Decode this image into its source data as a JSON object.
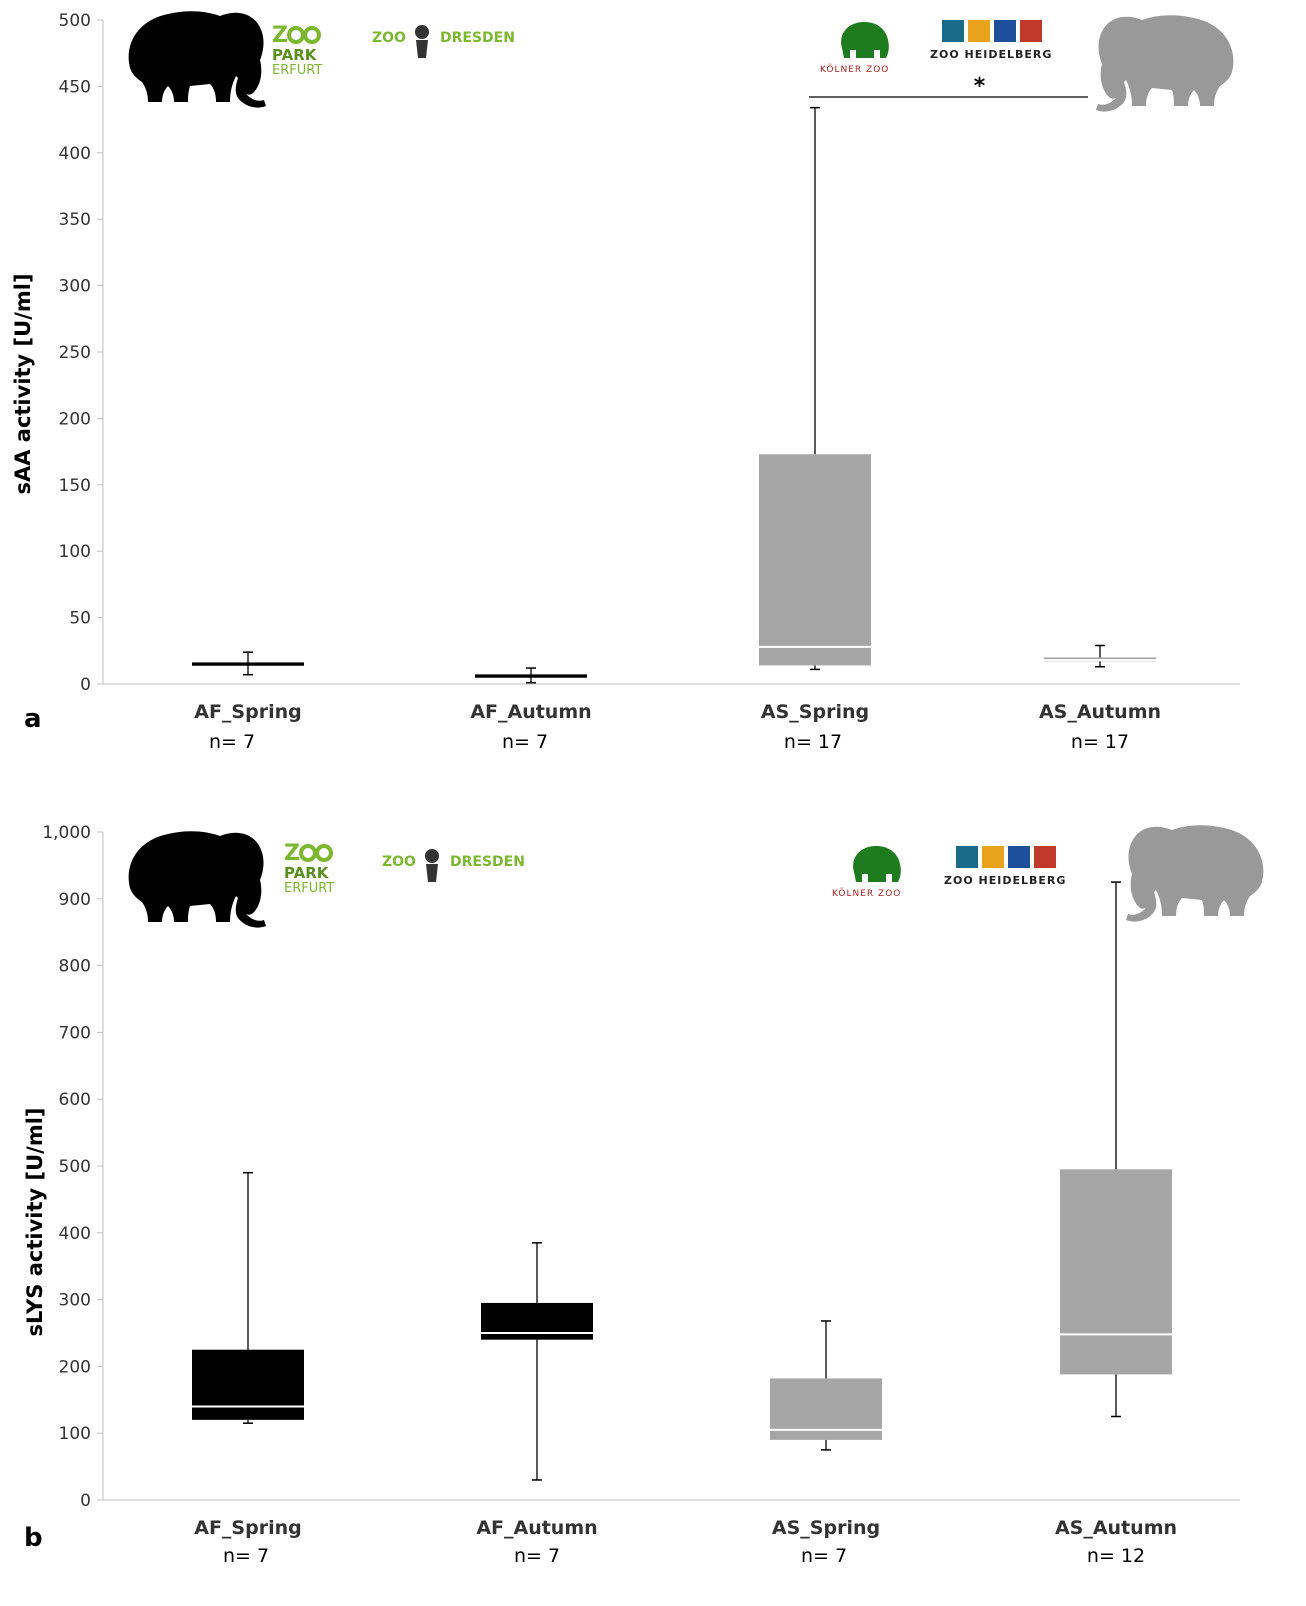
{
  "chart_data": [
    {
      "type": "boxplot",
      "panel_label": "a",
      "ylabel": "sAA activity [U/ml]",
      "ylim": [
        0,
        500
      ],
      "yticks": [
        0,
        50,
        100,
        150,
        200,
        250,
        300,
        350,
        400,
        450,
        500
      ],
      "ytick_labels": [
        "0",
        "50",
        "100",
        "150",
        "200",
        "250",
        "300",
        "350",
        "400",
        "450",
        "500"
      ],
      "categories": [
        "AF_Spring",
        "AF_Autumn",
        "AS_Spring",
        "AS_Autumn"
      ],
      "sample_sizes": [
        "n= 7",
        "n= 7",
        "n= 17",
        "n= 17"
      ],
      "boxes": [
        {
          "category": "AF_Spring",
          "min": 7,
          "q1": 14,
          "median": 14.5,
          "q3": 15,
          "max": 24,
          "color": "#000000",
          "median_color": "#000000"
        },
        {
          "category": "AF_Autumn",
          "min": 1,
          "q1": 5,
          "median": 5.5,
          "q3": 6,
          "max": 12,
          "color": "#000000",
          "median_color": "#000000"
        },
        {
          "category": "AS_Spring",
          "min": 11,
          "q1": 14,
          "median": 28,
          "q3": 173,
          "max": 434,
          "color": "#a6a6a6",
          "median_color": "#ffffff"
        },
        {
          "category": "AS_Autumn",
          "min": 13,
          "q1": 17,
          "median": 18,
          "q3": 20,
          "max": 29,
          "color": "#a6a6a6",
          "median_color": "#ffffff"
        }
      ],
      "significance": {
        "from": "AS_Spring",
        "to": "AS_Autumn",
        "label": "*",
        "y": 442
      },
      "logos": {
        "left": [
          "Zoopark Erfurt",
          "Zoo Dresden"
        ],
        "right": [
          "Kölner Zoo",
          "Zoo Heidelberg"
        ],
        "left_icon": "african-elephant-icon",
        "right_icon": "asian-elephant-icon"
      }
    },
    {
      "type": "boxplot",
      "panel_label": "b",
      "ylabel": "sLYS activity [U/ml]",
      "ylim": [
        0,
        1000
      ],
      "yticks": [
        0,
        100,
        200,
        300,
        400,
        500,
        600,
        700,
        800,
        900,
        1000
      ],
      "ytick_labels": [
        "0",
        "100",
        "200",
        "300",
        "400",
        "500",
        "600",
        "700",
        "800",
        "900",
        "1,000"
      ],
      "categories": [
        "AF_Spring",
        "AF_Autumn",
        "AS_Spring",
        "AS_Autumn"
      ],
      "sample_sizes": [
        "n= 7",
        "n= 7",
        "n= 7",
        "n= 12"
      ],
      "boxes": [
        {
          "category": "AF_Spring",
          "min": 115,
          "q1": 120,
          "median": 140,
          "q3": 225,
          "max": 490,
          "color": "#000000",
          "median_color": "#ffffff"
        },
        {
          "category": "AF_Autumn",
          "min": 30,
          "q1": 240,
          "median": 250,
          "q3": 295,
          "max": 385,
          "color": "#000000",
          "median_color": "#ffffff"
        },
        {
          "category": "AS_Spring",
          "min": 75,
          "q1": 90,
          "median": 105,
          "q3": 182,
          "max": 268,
          "color": "#a6a6a6",
          "median_color": "#ffffff"
        },
        {
          "category": "AS_Autumn",
          "min": 125,
          "q1": 188,
          "median": 248,
          "q3": 495,
          "max": 925,
          "color": "#a6a6a6",
          "median_color": "#ffffff"
        }
      ],
      "logos": {
        "left": [
          "Zoopark Erfurt",
          "Zoo Dresden"
        ],
        "right": [
          "Kölner Zoo",
          "Zoo Heidelberg"
        ],
        "left_icon": "african-elephant-icon",
        "right_icon": "asian-elephant-icon"
      }
    }
  ]
}
